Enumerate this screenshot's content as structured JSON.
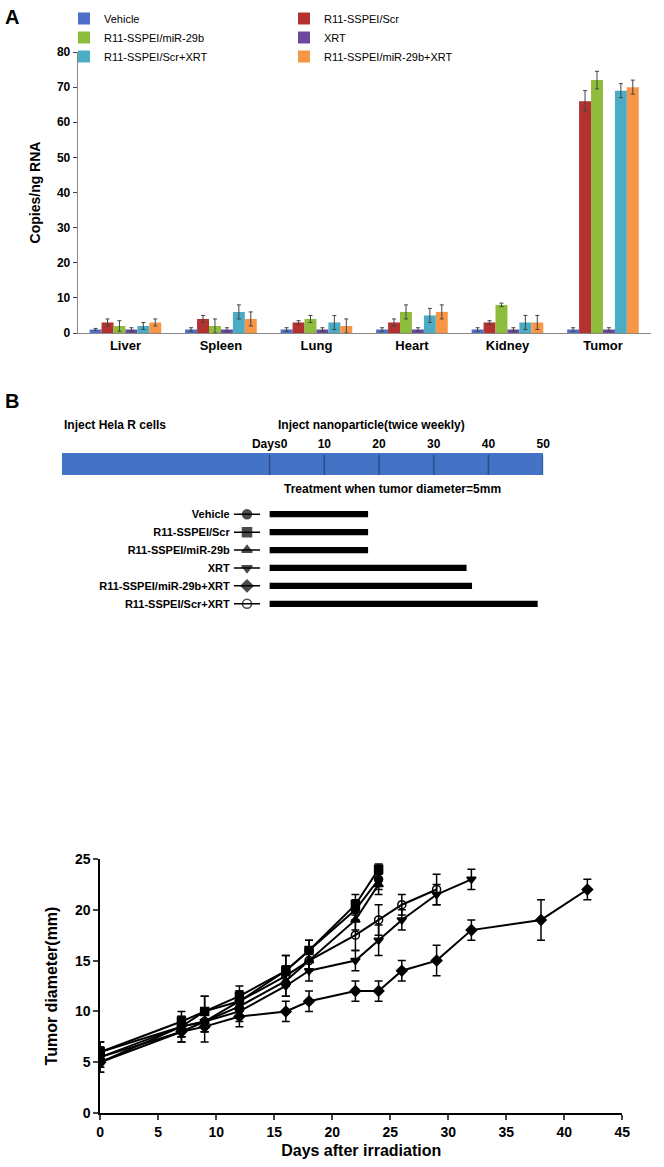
{
  "chart_data": [
    {
      "panel": "A",
      "type": "bar",
      "categories": [
        "Liver",
        "Spleen",
        "Lung",
        "Heart",
        "Kidney",
        "Tumor"
      ],
      "y_label": "Copies/ng RNA",
      "ylim": [
        0,
        80
      ],
      "yticks": [
        0,
        10,
        20,
        30,
        40,
        50,
        60,
        70,
        80
      ],
      "grid": false,
      "legend": "top",
      "series": [
        {
          "name": "Vehicle",
          "color": "#4f6fc8",
          "values": [
            1,
            1,
            1,
            1,
            1,
            1
          ],
          "errors": [
            0.3,
            0.5,
            0.5,
            0.5,
            0.5,
            0.5
          ]
        },
        {
          "name": "R11-SSPEI/Scr",
          "color": "#b3322f",
          "values": [
            3,
            4,
            3,
            3,
            3,
            66
          ],
          "errors": [
            1,
            1,
            0.5,
            1,
            0.5,
            3
          ]
        },
        {
          "name": "R11-SSPEI/miR-29b",
          "color": "#8ebd3d",
          "values": [
            2,
            2,
            4,
            6,
            8,
            72
          ],
          "errors": [
            1.5,
            2,
            1,
            2,
            0.5,
            2.5
          ]
        },
        {
          "name": "XRT",
          "color": "#6a4a9c",
          "values": [
            1,
            1,
            1,
            1,
            1,
            1
          ],
          "errors": [
            0.5,
            0.5,
            0.5,
            0.5,
            0.5,
            0.5
          ]
        },
        {
          "name": "R11-SSPEI/Scr+XRT",
          "color": "#4bacc6",
          "values": [
            2,
            6,
            3,
            5,
            3,
            69
          ],
          "errors": [
            1,
            2,
            2,
            2,
            2,
            2
          ]
        },
        {
          "name": "R11-SSPEI/miR-29b+XRT",
          "color": "#f79646",
          "values": [
            3,
            4,
            2,
            6,
            3,
            70
          ],
          "errors": [
            1,
            2,
            2,
            2,
            2,
            2
          ]
        }
      ]
    },
    {
      "panel": "B",
      "type": "bar",
      "orientation": "horizontal",
      "color": "#000000",
      "start_label": "Inject Hela R cells",
      "injection_label": "Inject nanoparticle(twice weekly)",
      "treatment_label": "Treatment when tumor diameter=5mm",
      "xlim": [
        -38,
        50
      ],
      "xticks": [
        {
          "value": 0,
          "label": "Days0"
        },
        10,
        20,
        30,
        40,
        50
      ],
      "grid": false,
      "series": [
        {
          "name": "Vehicle",
          "marker": "circle",
          "values": [
            18
          ]
        },
        {
          "name": "R11-SSPEI/Scr",
          "marker": "square",
          "values": [
            18
          ]
        },
        {
          "name": "R11-SSPEI/miR-29b",
          "marker": "triangle-up",
          "values": [
            18
          ]
        },
        {
          "name": "XRT",
          "marker": "triangle-down",
          "values": [
            36
          ]
        },
        {
          "name": "R11-SSPEI/miR-29b+XRT",
          "marker": "diamond",
          "values": [
            37
          ]
        },
        {
          "name": "R11-SSPEI/Scr+XRT",
          "marker": "circle-open",
          "values": [
            49
          ]
        }
      ]
    },
    {
      "type": "line",
      "color": "#000000",
      "x_label": "Days after irradiation",
      "y_label": "Tumor diameter(mm)",
      "xlim": [
        0,
        45
      ],
      "xticks": [
        0,
        5,
        10,
        15,
        20,
        25,
        30,
        35,
        40,
        45
      ],
      "ylim": [
        0,
        25
      ],
      "yticks": [
        0,
        5,
        10,
        15,
        20,
        25
      ],
      "grid": false,
      "series": [
        {
          "name": "Vehicle",
          "marker": "circle",
          "x": [
            0,
            7,
            9,
            12,
            16,
            18,
            22,
            24
          ],
          "values": [
            6,
            8.5,
            10,
            11,
            14,
            16,
            20,
            23
          ],
          "errors": [
            1,
            1,
            1.5,
            1,
            1.5,
            1,
            1,
            1
          ]
        },
        {
          "name": "R11-SSPEI/Scr",
          "marker": "square",
          "x": [
            0,
            7,
            9,
            12,
            16,
            18,
            22,
            24
          ],
          "values": [
            6,
            9,
            10,
            11.5,
            14,
            16,
            20.5,
            24
          ],
          "errors": [
            1,
            1,
            1.5,
            1,
            1.5,
            1,
            1,
            0.5
          ]
        },
        {
          "name": "R11-SSPEI/miR-29b",
          "marker": "triangle-up",
          "x": [
            0,
            7,
            9,
            12,
            16,
            18,
            22,
            24
          ],
          "values": [
            5.5,
            8.5,
            9,
            10.5,
            13,
            15,
            19,
            22.5
          ],
          "errors": [
            1,
            1,
            1,
            1,
            1.5,
            1,
            1,
            1
          ]
        },
        {
          "name": "XRT",
          "marker": "triangle-down",
          "x": [
            0,
            7,
            9,
            12,
            16,
            18,
            22,
            24,
            26,
            29,
            32
          ],
          "values": [
            5.5,
            8,
            9,
            10,
            12.5,
            14,
            15,
            17,
            19,
            21.5,
            23
          ],
          "errors": [
            1,
            1,
            1,
            1,
            1,
            1,
            1,
            1.5,
            1,
            1,
            1
          ]
        },
        {
          "name": "R11-SSPEI/miR-29b+XRT",
          "marker": "diamond",
          "x": [
            0,
            7,
            9,
            12,
            16,
            18,
            22,
            24,
            26,
            29,
            32,
            38,
            42
          ],
          "values": [
            5,
            8,
            8.5,
            9.5,
            10,
            11,
            12,
            12,
            14,
            15,
            18,
            19,
            22
          ],
          "errors": [
            1,
            1,
            1.5,
            1,
            1,
            1,
            1,
            1,
            1,
            1.5,
            1,
            2,
            1
          ]
        },
        {
          "name": "R11-SSPEI/Scr+XRT",
          "marker": "circle-open",
          "x": [
            0,
            7,
            9,
            12,
            16,
            18,
            22,
            24,
            26,
            29
          ],
          "values": [
            5,
            8.5,
            9,
            11,
            13.5,
            15,
            17.5,
            19,
            20.5,
            22
          ],
          "errors": [
            1,
            1,
            1,
            1,
            1,
            1,
            1.5,
            1.5,
            1,
            1.5
          ]
        }
      ]
    }
  ]
}
